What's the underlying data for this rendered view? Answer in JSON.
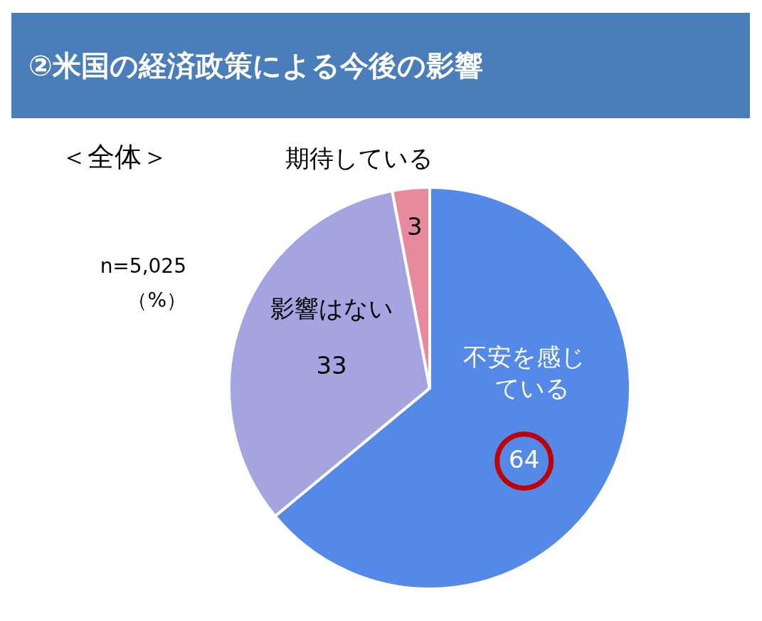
{
  "chart_data": {
    "type": "pie",
    "title": "②米国の経済政策による今後の影響",
    "subtitle": "＜全体＞",
    "annotations": [
      "n=5,025",
      "（%）"
    ],
    "categories": [
      "不安を感じている",
      "影響はない",
      "期待している"
    ],
    "values": [
      64,
      33,
      3
    ],
    "colors": [
      "#5589e8",
      "#a4a4e0",
      "#e88a9e"
    ],
    "data_labels": true
  }
}
